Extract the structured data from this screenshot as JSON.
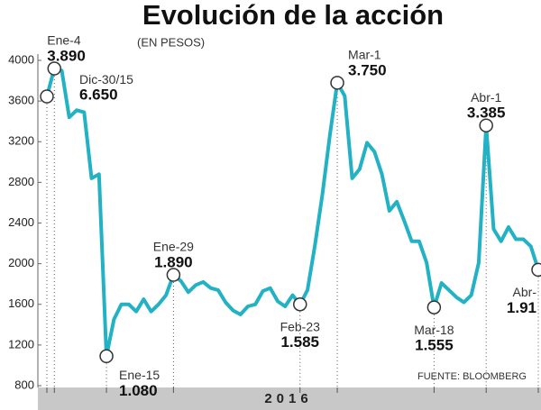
{
  "chart_data": {
    "type": "line",
    "title": "Evolución de la acción",
    "subtitle": "(EN PESOS)",
    "source": "FUENTE: BLOOMBERG",
    "xlabel": "2016",
    "color": "#22b2c4",
    "values": [
      3645,
      3920,
      3900,
      3440,
      3510,
      3490,
      2840,
      2880,
      1090,
      1450,
      1600,
      1600,
      1530,
      1650,
      1530,
      1600,
      1690,
      1890,
      1830,
      1720,
      1790,
      1820,
      1760,
      1740,
      1620,
      1540,
      1500,
      1580,
      1600,
      1730,
      1760,
      1630,
      1580,
      1690,
      1600,
      1740,
      2180,
      2680,
      3260,
      3780,
      3650,
      2840,
      2930,
      3190,
      3100,
      2880,
      2520,
      2610,
      2420,
      2220,
      2220,
      2010,
      1570,
      1810,
      1740,
      1670,
      1620,
      1690,
      2010,
      3360,
      2340,
      2220,
      2360,
      2240,
      2240,
      2170,
      1940
    ],
    "ylim": [
      800,
      4000
    ],
    "yticks": [
      800,
      1200,
      1600,
      2000,
      2400,
      2800,
      3200,
      3600,
      4000
    ],
    "annotations": [
      {
        "date": "Dic-30/15",
        "value": "6.650"
      },
      {
        "date": "Ene-4",
        "value": "3.890"
      },
      {
        "date": "Ene-15",
        "value": "1.080"
      },
      {
        "date": "Ene-29",
        "value": "1.890"
      },
      {
        "date": "Feb-23",
        "value": "1.585"
      },
      {
        "date": "Mar-1",
        "value": "3.750"
      },
      {
        "date": "Mar-18",
        "value": "1.555"
      },
      {
        "date": "Abr-1",
        "value": "3.385"
      },
      {
        "date": "Abr-",
        "value": "1.91"
      }
    ]
  }
}
